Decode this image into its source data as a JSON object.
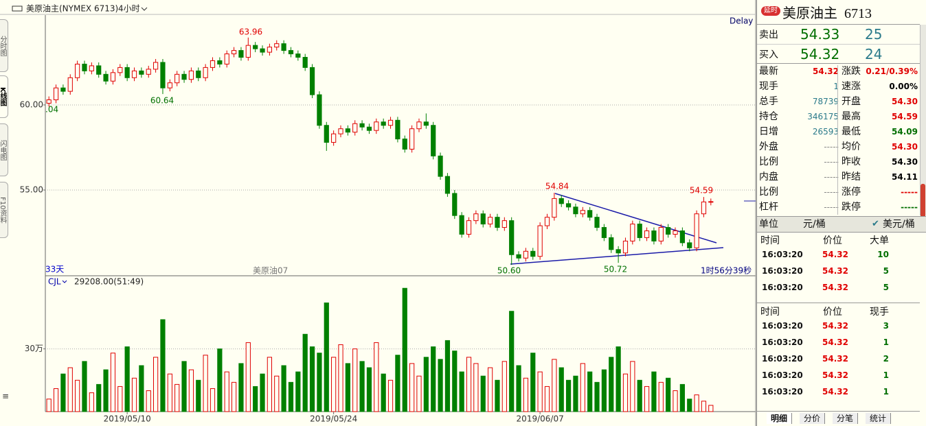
{
  "header": {
    "instrument": "美原油主(NYMEX 6713)",
    "period": "4小时"
  },
  "side_tabs": [
    "分时图",
    "K线图",
    "闪电图",
    "F10资料"
  ],
  "chart_data": [
    {
      "type": "candlestick",
      "categories": [
        null,
        null,
        null,
        null,
        null,
        null,
        null,
        null,
        null,
        null,
        null,
        "2019/05/10",
        null,
        null,
        null,
        null,
        null,
        null,
        null,
        null,
        null,
        null,
        null,
        null,
        null,
        null,
        null,
        null,
        null,
        null,
        null,
        null,
        null,
        null,
        null,
        null,
        null,
        null,
        null,
        null,
        "2019/05/24",
        null,
        null,
        null,
        null,
        null,
        null,
        null,
        null,
        null,
        null,
        null,
        null,
        null,
        null,
        null,
        null,
        null,
        null,
        null,
        null,
        null,
        null,
        null,
        null,
        null,
        null,
        null,
        null,
        "2019/06/07",
        null,
        null,
        null,
        null,
        null,
        null,
        null,
        null,
        null,
        null,
        null,
        null,
        null,
        null,
        null,
        null,
        null,
        null,
        null,
        null,
        null,
        null,
        null,
        null
      ],
      "open": [
        60.1,
        60.3,
        61.0,
        60.8,
        61.6,
        62.4,
        62.0,
        62.3,
        61.8,
        61.4,
        61.9,
        62.2,
        61.6,
        62.0,
        61.8,
        62.1,
        62.5,
        61.0,
        61.3,
        61.8,
        61.5,
        62.0,
        61.6,
        62.2,
        62.6,
        62.4,
        63.0,
        63.2,
        62.8,
        63.5,
        63.3,
        63.1,
        63.4,
        63.6,
        63.2,
        63.0,
        62.8,
        62.2,
        60.6,
        58.8,
        57.8,
        58.3,
        58.6,
        58.4,
        58.9,
        58.7,
        58.5,
        59.0,
        58.8,
        59.1,
        58.0,
        57.4,
        58.6,
        59.0,
        58.8,
        57.0,
        55.8,
        54.8,
        53.5,
        52.4,
        53.2,
        53.6,
        53.0,
        53.4,
        52.8,
        53.2,
        51.2,
        51.0,
        51.4,
        51.1,
        52.9,
        53.4,
        54.5,
        54.2,
        54.0,
        53.6,
        53.8,
        53.4,
        52.8,
        52.2,
        51.5,
        51.3,
        52.0,
        53.0,
        52.2,
        52.6,
        52.0,
        52.8,
        52.4,
        52.6,
        51.9,
        51.6,
        53.6,
        54.3
      ],
      "high": [
        60.5,
        61.2,
        61.2,
        61.8,
        62.6,
        62.6,
        62.5,
        62.5,
        62.0,
        62.1,
        62.4,
        62.4,
        62.2,
        62.2,
        62.3,
        62.7,
        62.7,
        61.5,
        62.0,
        62.0,
        62.2,
        62.2,
        62.4,
        62.8,
        62.8,
        63.2,
        63.4,
        63.4,
        63.96,
        63.7,
        63.5,
        63.6,
        63.8,
        63.8,
        63.4,
        63.2,
        63.0,
        62.4,
        60.8,
        59.0,
        58.5,
        58.8,
        58.8,
        59.1,
        59.1,
        58.9,
        59.2,
        59.2,
        59.3,
        59.3,
        58.2,
        58.8,
        59.2,
        59.5,
        59.0,
        57.2,
        56.0,
        55.0,
        53.7,
        53.4,
        53.8,
        53.8,
        53.6,
        53.6,
        53.4,
        53.4,
        51.4,
        51.6,
        51.6,
        53.1,
        53.6,
        54.84,
        54.7,
        54.4,
        54.2,
        54.0,
        54.0,
        53.6,
        53.0,
        52.4,
        51.7,
        52.2,
        53.2,
        53.2,
        52.8,
        52.8,
        53.0,
        53.0,
        52.8,
        52.8,
        52.1,
        53.8,
        54.59,
        54.5
      ],
      "low": [
        59.9,
        60.1,
        60.6,
        60.6,
        61.4,
        61.8,
        61.8,
        61.6,
        61.2,
        61.2,
        61.7,
        61.4,
        61.4,
        61.6,
        61.6,
        61.9,
        60.64,
        60.8,
        61.1,
        61.3,
        61.3,
        61.4,
        61.4,
        62.0,
        62.2,
        62.2,
        62.8,
        62.6,
        62.6,
        63.1,
        62.9,
        62.9,
        63.2,
        63.0,
        62.8,
        62.6,
        62.0,
        60.4,
        58.6,
        57.3,
        57.6,
        58.1,
        58.2,
        58.2,
        58.5,
        58.3,
        58.3,
        58.6,
        58.6,
        57.8,
        57.2,
        57.2,
        58.4,
        58.6,
        56.8,
        55.6,
        54.6,
        53.3,
        52.2,
        52.2,
        53.0,
        52.8,
        52.8,
        52.6,
        52.6,
        50.6,
        50.8,
        50.8,
        50.9,
        50.9,
        52.7,
        53.2,
        54.0,
        53.8,
        53.4,
        53.4,
        53.2,
        52.6,
        52.0,
        51.3,
        50.72,
        51.1,
        51.8,
        52.0,
        52.0,
        51.8,
        51.8,
        52.2,
        52.2,
        51.7,
        51.4,
        51.4,
        53.4,
        54.1
      ],
      "close": [
        60.3,
        61.0,
        60.8,
        61.6,
        62.4,
        62.0,
        62.3,
        61.8,
        61.4,
        61.9,
        62.2,
        61.6,
        62.0,
        61.8,
        62.1,
        62.5,
        61.0,
        61.3,
        61.8,
        61.5,
        62.0,
        61.6,
        62.2,
        62.6,
        62.4,
        63.0,
        63.2,
        62.8,
        63.5,
        63.3,
        63.1,
        63.4,
        63.6,
        63.2,
        63.0,
        62.8,
        62.2,
        60.6,
        58.8,
        57.8,
        58.3,
        58.6,
        58.4,
        58.9,
        58.7,
        58.5,
        59.0,
        58.8,
        59.1,
        58.0,
        57.4,
        58.6,
        59.0,
        58.8,
        57.0,
        55.8,
        54.8,
        53.5,
        52.4,
        53.2,
        53.6,
        53.0,
        53.4,
        52.8,
        53.2,
        51.2,
        51.0,
        51.4,
        51.1,
        52.9,
        53.4,
        54.5,
        54.2,
        54.0,
        53.6,
        53.8,
        53.4,
        52.8,
        52.2,
        51.5,
        51.3,
        52.0,
        53.0,
        52.2,
        52.6,
        52.0,
        52.8,
        52.4,
        52.6,
        51.9,
        51.6,
        53.6,
        54.3,
        54.32
      ],
      "up_color": "#e00000",
      "down_color": "#008000",
      "ylim": [
        49.96,
        65.28
      ],
      "yticks": [
        {
          "value": 55,
          "label": "55.00"
        },
        {
          "value": 60,
          "label": "60.00"
        }
      ],
      "grid": true,
      "annotations": [
        "63.96",
        "60.64",
        "54.84",
        "54.59",
        "50.60",
        "50.72",
        ".04",
        "33天",
        "美原油07",
        "1时56分39秒",
        "Delay"
      ]
    },
    {
      "type": "bar",
      "indicator": "CJL",
      "readout": "29208.00(51:49)",
      "values": [
        60000,
        110000,
        180000,
        210000,
        150000,
        240000,
        90000,
        130000,
        200000,
        280000,
        120000,
        310000,
        160000,
        220000,
        100000,
        260000,
        440000,
        180000,
        130000,
        240000,
        200000,
        150000,
        270000,
        110000,
        300000,
        190000,
        140000,
        230000,
        330000,
        120000,
        180000,
        260000,
        170000,
        220000,
        140000,
        190000,
        370000,
        310000,
        280000,
        520000,
        260000,
        320000,
        230000,
        300000,
        240000,
        210000,
        330000,
        180000,
        150000,
        270000,
        590000,
        230000,
        170000,
        260000,
        310000,
        250000,
        340000,
        290000,
        190000,
        260000,
        230000,
        170000,
        210000,
        150000,
        240000,
        480000,
        220000,
        160000,
        280000,
        190000,
        120000,
        250000,
        210000,
        150000,
        170000,
        230000,
        190000,
        140000,
        200000,
        260000,
        310000,
        180000,
        240000,
        150000,
        120000,
        190000,
        140000,
        160000,
        100000,
        130000,
        60000,
        80000,
        50000,
        30000
      ],
      "ylim": [
        0,
        640000
      ],
      "yticks": [
        {
          "value": 300000,
          "label": "30万"
        }
      ],
      "grid": true
    }
  ],
  "panel": {
    "badge": "延时",
    "title": "美原油主  6713",
    "ask": [
      "卖出",
      "54.33",
      "25"
    ],
    "bid": [
      "买入",
      "54.32",
      "24"
    ],
    "stats": [
      [
        "最新",
        "54.32",
        "涨跌",
        "0.21/0.39%"
      ],
      [
        "现手",
        "1",
        "速涨",
        "0.00%"
      ],
      [
        "总手",
        "78739",
        "开盘",
        "54.30"
      ],
      [
        "持仓",
        "346175",
        "最高",
        "54.59"
      ],
      [
        "日增",
        "26593",
        "最低",
        "54.09"
      ],
      [
        "外盘",
        "-----",
        "均价",
        "54.30"
      ],
      [
        "比例",
        "-----",
        "昨收",
        "54.30"
      ],
      [
        "内盘",
        "-----",
        "昨结",
        "54.11"
      ],
      [
        "比例",
        "-----",
        "涨停",
        "-----"
      ],
      [
        "杠杆",
        "-----",
        "跌停",
        "-----"
      ]
    ],
    "unit": [
      "单位",
      "元/桶",
      "美元/桶"
    ],
    "big_orders": {
      "headers": [
        "时间",
        "价位",
        "大单"
      ],
      "rows": [
        [
          "16:03:20",
          "54.32",
          "10"
        ],
        [
          "16:03:20",
          "54.32",
          "5"
        ],
        [
          "16:03:20",
          "54.32",
          "5"
        ]
      ]
    },
    "ticks": {
      "headers": [
        "时间",
        "价位",
        "现手"
      ],
      "rows": [
        [
          "16:03:20",
          "54.32",
          "3"
        ],
        [
          "16:03:20",
          "54.32",
          "1"
        ],
        [
          "16:03:20",
          "54.32",
          "2"
        ],
        [
          "16:03:20",
          "54.32",
          "1"
        ],
        [
          "16:03:20",
          "54.32",
          "1"
        ]
      ]
    },
    "tabs": [
      "明细",
      "分价",
      "分笔",
      "统计"
    ]
  }
}
